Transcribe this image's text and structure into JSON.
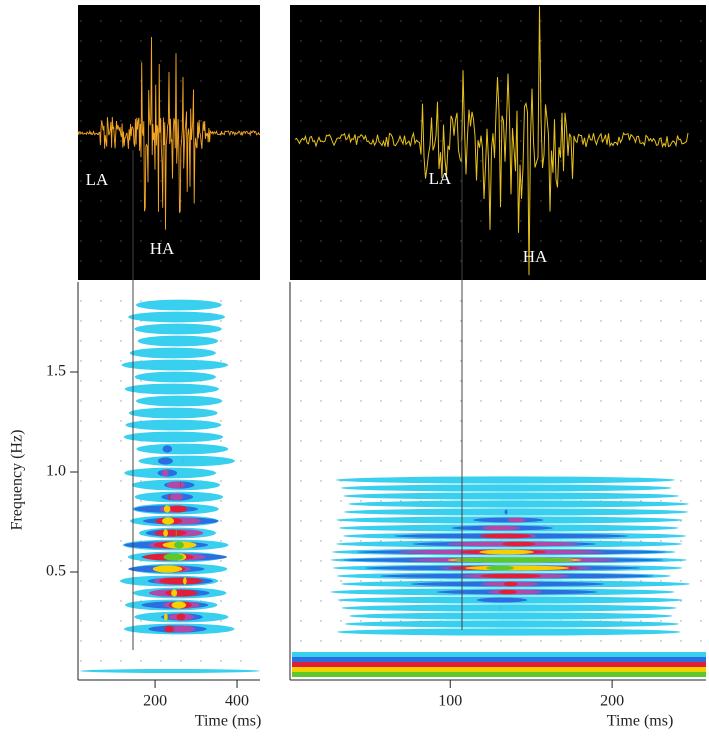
{
  "chart_data": [
    {
      "type": "spectrogram",
      "annotations": [
        "LA",
        "HA"
      ],
      "ylabel": "Frequency (Hz)",
      "xlabel": "Time (ms)",
      "xlim": [
        12,
        456
      ],
      "xticks": [
        200,
        400
      ],
      "ylim": [
        -0.04,
        1.95
      ],
      "yticks": [
        0.5,
        {
          "value": 1,
          "label": "1.0"
        },
        1.5
      ]
    },
    {
      "type": "spectrogram",
      "annotations": [
        "LA",
        "HA"
      ],
      "xlabel": "Time (ms)",
      "xlim": [
        1,
        258
      ],
      "xticks": [
        100,
        200
      ]
    }
  ]
}
